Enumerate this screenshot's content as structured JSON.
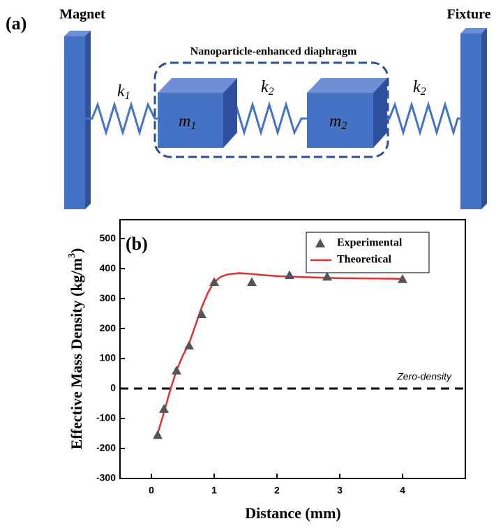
{
  "diagram": {
    "panel_label": "(a)",
    "left_label": "Magnet",
    "right_label": "Fixture",
    "group_label": "Nanoparticle-enhanced diaphragm",
    "springs": [
      {
        "symbol": "k",
        "subscript": "1"
      },
      {
        "symbol": "k",
        "subscript": "2"
      },
      {
        "symbol": "k",
        "subscript": "2"
      }
    ],
    "masses": [
      {
        "symbol": "m",
        "subscript": "1"
      },
      {
        "symbol": "m",
        "subscript": "2"
      }
    ]
  },
  "chart_data": {
    "type": "scatter",
    "panel_label": "(b)",
    "xlabel": "Distance (mm)",
    "ylabel": {
      "text": "Effective Mass Density (kg/m",
      "superscript": "3",
      "close": ")"
    },
    "xlim": [
      -0.5,
      5
    ],
    "ylim": [
      -300,
      563
    ],
    "xticks": [
      0,
      1,
      2,
      3,
      4
    ],
    "yticks": [
      -300,
      -200,
      -100,
      0,
      100,
      200,
      300,
      400,
      500
    ],
    "legend": "upper right",
    "reference_line": {
      "value": 0,
      "label": "Zero-density"
    },
    "series": [
      {
        "name": "Experimental",
        "mode": "markers",
        "color": "#555555",
        "x": [
          0.1,
          0.2,
          0.4,
          0.6,
          0.8,
          1.0,
          1.6,
          2.2,
          2.8,
          4.0
        ],
        "values": [
          -155,
          -68,
          60,
          143,
          248,
          355,
          355,
          378,
          373,
          365
        ]
      },
      {
        "name": "Theoretical",
        "mode": "line",
        "color": "#e03030",
        "x": [
          0.1,
          0.2,
          0.3,
          0.4,
          0.5,
          0.6,
          0.7,
          0.8,
          0.9,
          1.0,
          1.1,
          1.2,
          1.4,
          1.6,
          1.8,
          2.0,
          2.5,
          3.0,
          3.5,
          4.0
        ],
        "values": [
          -150,
          -80,
          -5,
          60,
          110,
          150,
          210,
          270,
          320,
          355,
          372,
          380,
          385,
          382,
          378,
          375,
          371,
          368,
          367,
          366
        ]
      }
    ]
  }
}
